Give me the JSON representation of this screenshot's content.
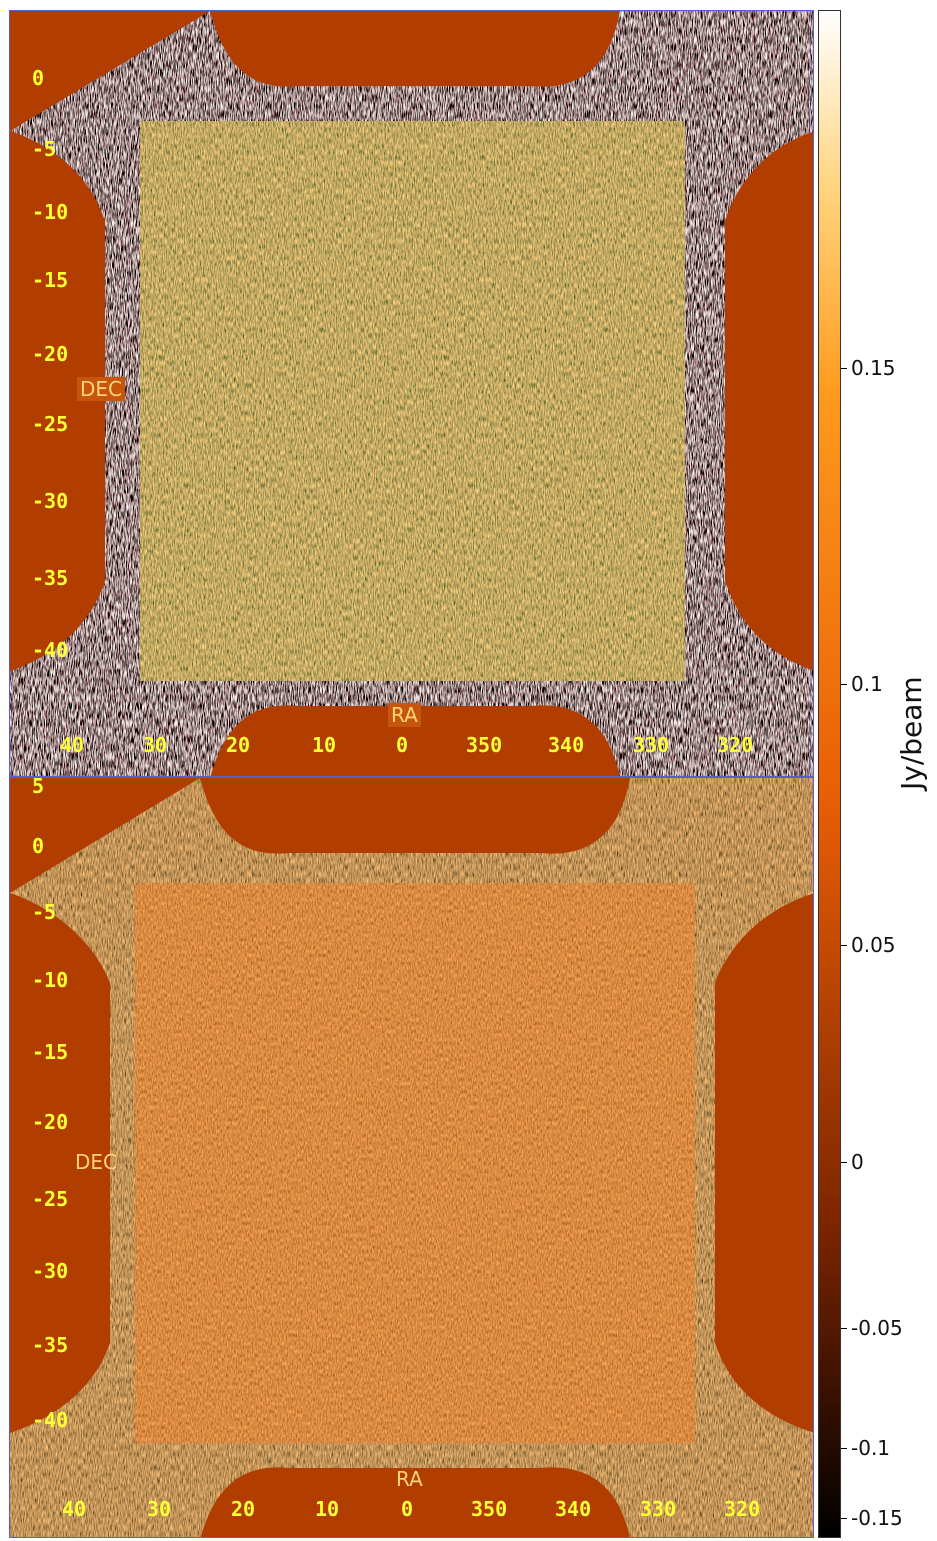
{
  "panels": [
    {
      "id": "top",
      "dec_ticks": [
        "0",
        "-5",
        "-10",
        "-15",
        "-20",
        "-25",
        "-30",
        "-35",
        "-40"
      ],
      "ra_ticks": [
        "40",
        "30",
        "20",
        "10",
        "0",
        "350",
        "340",
        "330",
        "320"
      ],
      "dec_label": "DEC",
      "ra_label": "RA"
    },
    {
      "id": "bottom",
      "dec_ticks": [
        "5",
        "0",
        "-5",
        "-10",
        "-15",
        "-20",
        "-25",
        "-30",
        "-35",
        "-40"
      ],
      "ra_ticks": [
        "40",
        "30",
        "20",
        "10",
        "0",
        "350",
        "340",
        "330",
        "320"
      ],
      "dec_label": "DEC",
      "ra_label": "RA"
    }
  ],
  "colorbar": {
    "title": "Jy/beam",
    "ticks": [
      "0.15",
      "0.1",
      "0.05",
      "0",
      "-0.05",
      "-0.1",
      "-0.15"
    ],
    "colors": {
      "min": "#000000",
      "mid": "#e85d04",
      "max": "#ffffff"
    }
  },
  "colors": {
    "background_fill": "#b23d00",
    "noise_light": "#ff8a2a",
    "noise_dark": "#5a1a00",
    "edge_noise": "#ffffff",
    "tick_text": "#ffff33",
    "frame": "#5b5bd6"
  }
}
